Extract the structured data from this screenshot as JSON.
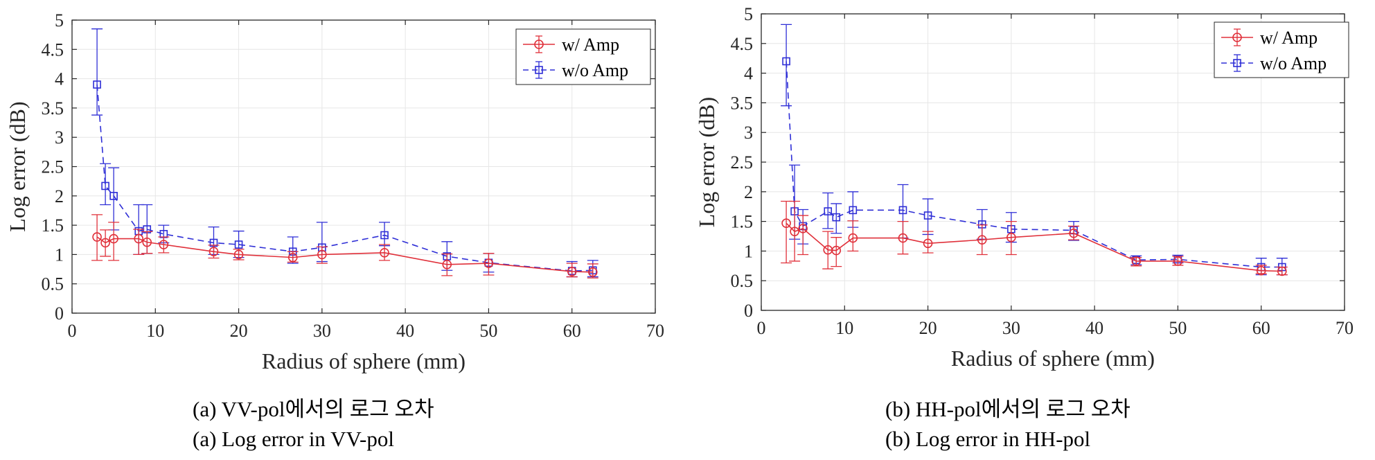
{
  "chart_data": [
    {
      "type": "line",
      "panel": "a",
      "xlabel": "Radius of sphere (mm)",
      "ylabel": "Log error (dB)",
      "xlim": [
        0,
        70
      ],
      "ylim": [
        0,
        5
      ],
      "xticks": [
        "0",
        "10",
        "20",
        "30",
        "40",
        "50",
        "60",
        "70"
      ],
      "yticks": [
        "0",
        "0.5",
        "1",
        "1.5",
        "2",
        "2.5",
        "3",
        "3.5",
        "4",
        "4.5",
        "5"
      ],
      "grid": true,
      "legend_position": "top-right",
      "caption_korean": "(a) VV-pol에서의 로그 오차",
      "caption_english": "(a) Log error in VV-pol",
      "series": [
        {
          "name": "w/ Amp",
          "color": "#e0303a",
          "marker": "circle",
          "dash": "solid",
          "x": [
            3,
            4,
            5,
            8,
            9,
            11,
            17,
            20,
            26.5,
            30,
            37.5,
            45,
            50,
            60,
            62.5
          ],
          "y": [
            1.3,
            1.2,
            1.27,
            1.27,
            1.21,
            1.17,
            1.05,
            1.0,
            0.95,
            1.0,
            1.03,
            0.83,
            0.85,
            0.71,
            0.7
          ],
          "err_low": [
            0.9,
            0.97,
            0.9,
            1.0,
            1.02,
            1.03,
            0.94,
            0.91,
            0.87,
            0.85,
            0.9,
            0.64,
            0.65,
            0.62,
            0.6
          ],
          "err_high": [
            1.68,
            1.42,
            1.55,
            1.43,
            1.39,
            1.3,
            1.16,
            1.09,
            1.05,
            1.13,
            1.17,
            1.01,
            1.02,
            0.85,
            0.84
          ]
        },
        {
          "name": "w/o Amp",
          "color": "#2e2ed6",
          "marker": "square",
          "dash": "dashed",
          "x": [
            3,
            4,
            5,
            8,
            9,
            11,
            17,
            20,
            26.5,
            30,
            37.5,
            45,
            50,
            60,
            62.5
          ],
          "y": [
            3.9,
            2.17,
            2.0,
            1.4,
            1.43,
            1.35,
            1.2,
            1.17,
            1.05,
            1.12,
            1.33,
            0.97,
            0.86,
            0.72,
            0.73
          ],
          "err_low": [
            3.38,
            1.85,
            1.42,
            1.0,
            1.02,
            1.2,
            1.0,
            0.95,
            0.85,
            0.88,
            1.15,
            0.73,
            0.7,
            0.62,
            0.62
          ],
          "err_high": [
            4.85,
            2.55,
            2.48,
            1.85,
            1.85,
            1.5,
            1.47,
            1.4,
            1.3,
            1.55,
            1.55,
            1.22,
            1.02,
            0.88,
            0.9
          ]
        }
      ]
    },
    {
      "type": "line",
      "panel": "b",
      "xlabel": "Radius of sphere (mm)",
      "ylabel": "Log error (dB)",
      "xlim": [
        0,
        70
      ],
      "ylim": [
        0,
        5
      ],
      "xticks": [
        "0",
        "10",
        "20",
        "30",
        "40",
        "50",
        "60",
        "70"
      ],
      "yticks": [
        "0",
        "0.5",
        "1",
        "1.5",
        "2",
        "2.5",
        "3",
        "3.5",
        "4",
        "4.5",
        "5"
      ],
      "grid": true,
      "legend_position": "top-right",
      "caption_korean": "(b) HH-pol에서의 로그 오차",
      "caption_english": "(b) Log error in HH-pol",
      "series": [
        {
          "name": "w/ Amp",
          "color": "#e0303a",
          "marker": "circle",
          "dash": "solid",
          "x": [
            3,
            4,
            5,
            8,
            9,
            11,
            17,
            20,
            26.5,
            30,
            37.5,
            45,
            50,
            60,
            62.5
          ],
          "y": [
            1.47,
            1.33,
            1.38,
            1.02,
            1.01,
            1.22,
            1.22,
            1.13,
            1.19,
            1.23,
            1.3,
            0.83,
            0.83,
            0.67,
            0.66
          ],
          "err_low": [
            0.8,
            0.83,
            0.94,
            0.7,
            0.74,
            1.0,
            0.95,
            0.97,
            0.94,
            0.94,
            1.19,
            0.75,
            0.76,
            0.62,
            0.6
          ],
          "err_high": [
            1.84,
            1.84,
            1.6,
            1.33,
            1.23,
            1.51,
            1.5,
            1.33,
            1.44,
            1.5,
            1.42,
            0.89,
            0.91,
            0.76,
            0.73
          ]
        },
        {
          "name": "w/o Amp",
          "color": "#2e2ed6",
          "marker": "square",
          "dash": "dashed",
          "x": [
            3,
            4,
            5,
            8,
            9,
            11,
            17,
            20,
            26.5,
            30,
            37.5,
            45,
            50,
            60,
            62.5
          ],
          "y": [
            4.2,
            1.67,
            1.42,
            1.67,
            1.57,
            1.69,
            1.69,
            1.6,
            1.45,
            1.37,
            1.35,
            0.85,
            0.86,
            0.73,
            0.73
          ],
          "err_low": [
            3.45,
            1.2,
            1.12,
            1.38,
            1.3,
            1.4,
            1.22,
            1.28,
            1.2,
            1.15,
            1.18,
            0.77,
            0.8,
            0.6,
            0.6
          ],
          "err_high": [
            4.82,
            2.45,
            1.7,
            1.98,
            1.8,
            2.0,
            2.12,
            1.88,
            1.7,
            1.65,
            1.5,
            0.92,
            0.93,
            0.88,
            0.88
          ]
        }
      ]
    }
  ]
}
